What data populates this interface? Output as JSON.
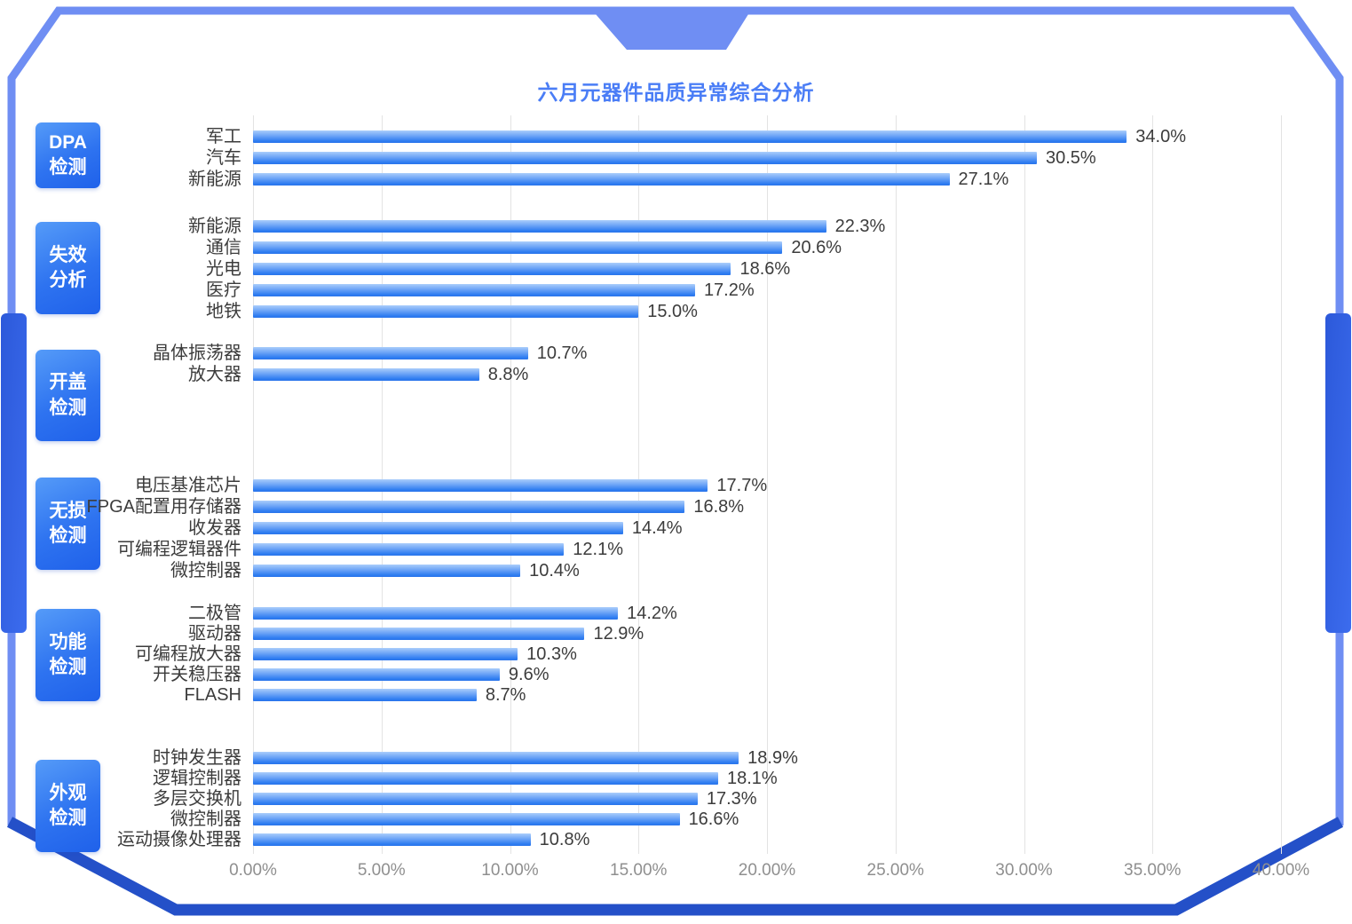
{
  "colors": {
    "title": "#4a7df6",
    "bar_gradient_top": "#aacdfb",
    "bar_gradient_bottom": "#2a74ea",
    "group_box_blue": "#2e73f0",
    "frame_light": "#6f8ef3",
    "frame_dark": "#2450c8",
    "value_text": "#3c3c3c",
    "axis_text": "#8f8f8f",
    "gridline": "#e3e3e3"
  },
  "chart_data": {
    "type": "bar",
    "orientation": "horizontal",
    "title": "六月元器件品质异常综合分析",
    "xlabel": "",
    "xlim": [
      0,
      40
    ],
    "grid": true,
    "value_suffix": "%",
    "x_tick_labels": [
      "0.00%",
      "5.00%",
      "10.00%",
      "15.00%",
      "20.00%",
      "25.00%",
      "30.00%",
      "35.00%",
      "40.00%"
    ],
    "groups": [
      {
        "label_lines": [
          "DPA",
          "检测"
        ],
        "items": [
          {
            "category": "军工",
            "value": 34.0,
            "value_label": "34.0%"
          },
          {
            "category": "汽车",
            "value": 30.5,
            "value_label": "30.5%"
          },
          {
            "category": "新能源",
            "value": 27.1,
            "value_label": "27.1%"
          }
        ]
      },
      {
        "label_lines": [
          "失效",
          "分析"
        ],
        "items": [
          {
            "category": "新能源",
            "value": 22.3,
            "value_label": "22.3%"
          },
          {
            "category": "通信",
            "value": 20.6,
            "value_label": "20.6%"
          },
          {
            "category": "光电",
            "value": 18.6,
            "value_label": "18.6%"
          },
          {
            "category": "医疗",
            "value": 17.2,
            "value_label": "17.2%"
          },
          {
            "category": "地铁",
            "value": 15.0,
            "value_label": "15.0%"
          }
        ]
      },
      {
        "label_lines": [
          "开盖",
          "检测"
        ],
        "items": [
          {
            "category": "晶体振荡器",
            "value": 10.7,
            "value_label": "10.7%"
          },
          {
            "category": "放大器",
            "value": 8.8,
            "value_label": "8.8%"
          }
        ]
      },
      {
        "label_lines": [
          "无损",
          "检测"
        ],
        "items": [
          {
            "category": "电压基准芯片",
            "value": 17.7,
            "value_label": "17.7%"
          },
          {
            "category": "FPGA配置用存储器",
            "value": 16.8,
            "value_label": "16.8%"
          },
          {
            "category": "收发器",
            "value": 14.4,
            "value_label": "14.4%"
          },
          {
            "category": "可编程逻辑器件",
            "value": 12.1,
            "value_label": "12.1%"
          },
          {
            "category": "微控制器",
            "value": 10.4,
            "value_label": "10.4%"
          }
        ]
      },
      {
        "label_lines": [
          "功能",
          "检测"
        ],
        "items": [
          {
            "category": "二极管",
            "value": 14.2,
            "value_label": "14.2%"
          },
          {
            "category": "驱动器",
            "value": 12.9,
            "value_label": "12.9%"
          },
          {
            "category": "可编程放大器",
            "value": 10.3,
            "value_label": "10.3%"
          },
          {
            "category": "开关稳压器",
            "value": 9.6,
            "value_label": "9.6%"
          },
          {
            "category": "FLASH",
            "value": 8.7,
            "value_label": "8.7%"
          }
        ]
      },
      {
        "label_lines": [
          "外观",
          "检测"
        ],
        "items": [
          {
            "category": "时钟发生器",
            "value": 18.9,
            "value_label": "18.9%"
          },
          {
            "category": "逻辑控制器",
            "value": 18.1,
            "value_label": "18.1%"
          },
          {
            "category": "多层交换机",
            "value": 17.3,
            "value_label": "17.3%"
          },
          {
            "category": "微控制器",
            "value": 16.6,
            "value_label": "16.6%"
          },
          {
            "category": "运动摄像处理器",
            "value": 10.8,
            "value_label": "10.8%"
          }
        ]
      }
    ]
  }
}
